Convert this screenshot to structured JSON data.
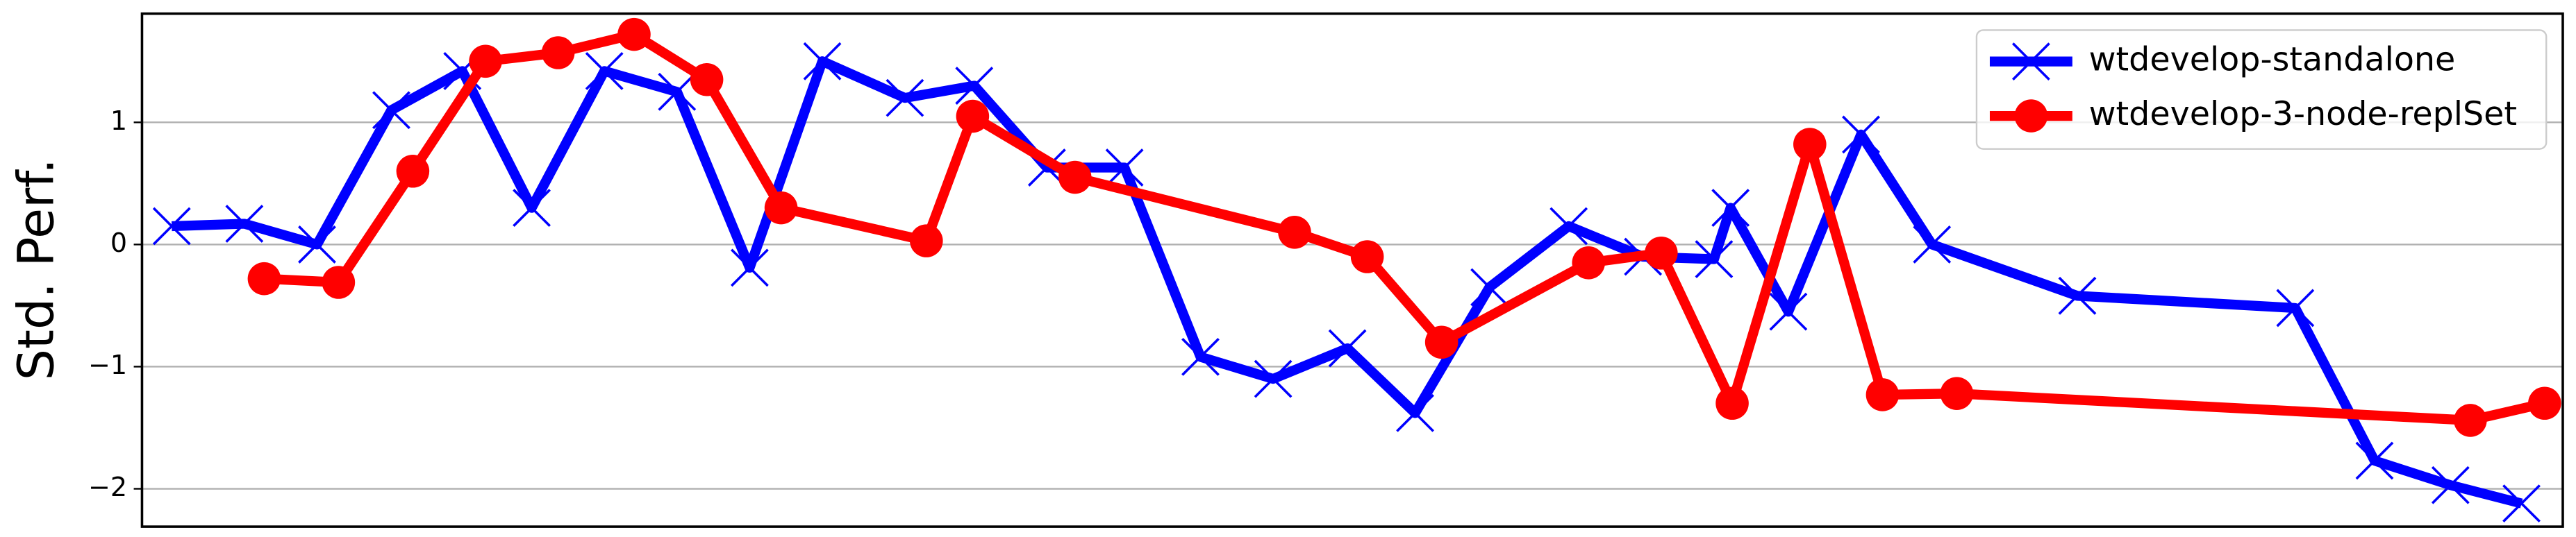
{
  "chart_data": {
    "type": "line",
    "ylabel": "Std. Perf.",
    "xlim": [
      0,
      1466
    ],
    "ylim": [
      -2.31,
      1.89
    ],
    "yticks": [
      {
        "value": -2,
        "label": "−2"
      },
      {
        "value": -1,
        "label": "−1"
      },
      0,
      1
    ],
    "grid": true,
    "legend": "upper right",
    "series": [
      {
        "name": "wtdevelop-standalone",
        "color": "#0000ff",
        "marker": "x",
        "x": [
          18,
          62,
          106,
          151,
          194,
          236,
          280,
          324,
          368,
          412,
          462,
          504,
          548,
          595,
          641,
          685,
          730,
          771,
          816,
          864,
          909,
          952,
          962,
          997,
          1041,
          1084,
          1172,
          1304,
          1352,
          1398,
          1441
        ],
        "values": [
          0.15,
          0.17,
          0.0,
          1.1,
          1.42,
          0.3,
          1.42,
          1.25,
          -0.19,
          1.5,
          1.2,
          1.3,
          0.63,
          0.63,
          -0.92,
          -1.1,
          -0.85,
          -1.38,
          -0.35,
          0.15,
          -0.1,
          -0.12,
          0.3,
          -0.55,
          0.9,
          0.0,
          -0.42,
          -0.52,
          -1.77,
          -1.97,
          -2.12
        ]
      },
      {
        "name": "wtdevelop-3-node-replSet",
        "color": "#ff0000",
        "marker": "o",
        "x": [
          74,
          119,
          164,
          208,
          252,
          298,
          342,
          387,
          475,
          503,
          565,
          698,
          742,
          787,
          876,
          920,
          963,
          1010,
          1054,
          1099,
          1410,
          1455
        ],
        "values": [
          -0.28,
          -0.31,
          0.6,
          1.5,
          1.57,
          1.72,
          1.35,
          0.3,
          0.03,
          1.05,
          0.55,
          0.1,
          -0.1,
          -0.8,
          -0.15,
          -0.07,
          -1.3,
          0.82,
          -1.23,
          -1.22,
          -1.44,
          -1.3
        ]
      }
    ]
  }
}
